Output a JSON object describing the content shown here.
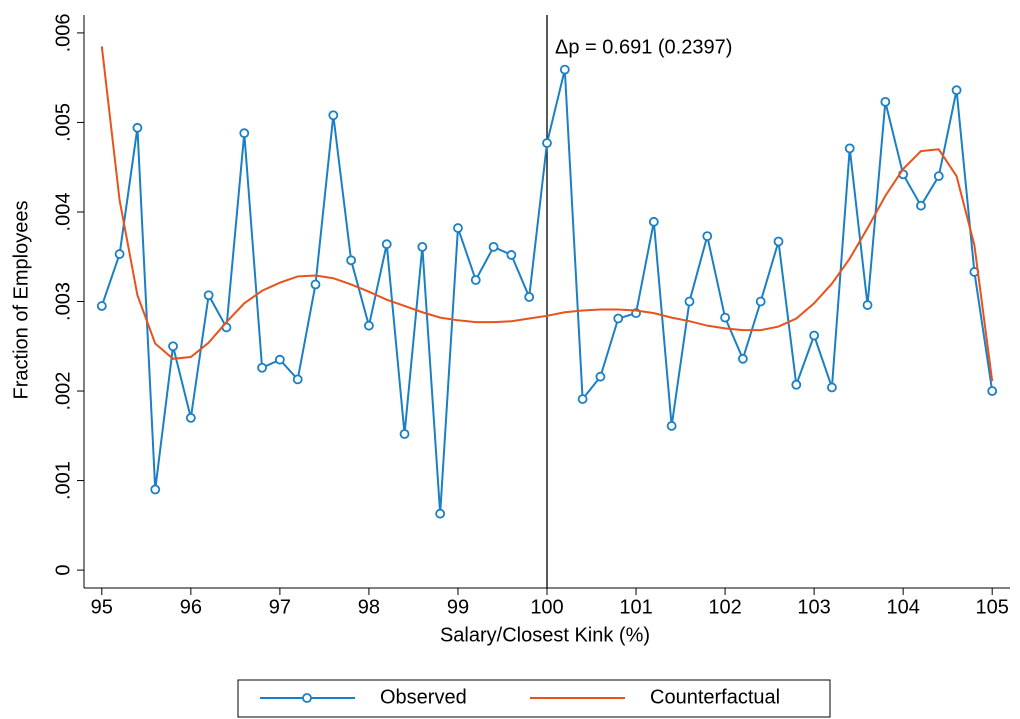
{
  "chart_data": {
    "type": "line",
    "x_label": "Salary/Closest Kink (%)",
    "y_label": "Fraction of Employees",
    "annotation": "Δp = 0.691 (0.2397)",
    "vline": 100,
    "x": [
      95,
      95.2,
      95.4,
      95.6,
      95.8,
      96,
      96.2,
      96.4,
      96.6,
      96.8,
      97,
      97.2,
      97.4,
      97.6,
      97.8,
      98,
      98.2,
      98.4,
      98.6,
      98.8,
      99,
      99.2,
      99.4,
      99.6,
      99.8,
      100,
      100.2,
      100.4,
      100.6,
      100.8,
      101,
      101.2,
      101.4,
      101.6,
      101.8,
      102,
      102.2,
      102.4,
      102.6,
      102.8,
      103,
      103.2,
      103.4,
      103.6,
      103.8,
      104,
      104.2,
      104.4,
      104.6,
      104.8,
      105
    ],
    "series": [
      {
        "name": "Observed",
        "color": "#1a7fc4",
        "markers": true,
        "values": [
          0.00295,
          0.00353,
          0.00494,
          0.0009,
          0.0025,
          0.0017,
          0.00307,
          0.00271,
          0.00488,
          0.00226,
          0.00235,
          0.00213,
          0.00319,
          0.00508,
          0.00346,
          0.00273,
          0.00364,
          0.00152,
          0.00361,
          0.00063,
          0.00382,
          0.00324,
          0.00361,
          0.00352,
          0.00305,
          0.00477,
          0.00559,
          0.00191,
          0.00216,
          0.00281,
          0.00287,
          0.00389,
          0.00161,
          0.003,
          0.00373,
          0.00282,
          0.00236,
          0.003,
          0.00367,
          0.00207,
          0.00262,
          0.00204,
          0.00471,
          0.00296,
          0.00523,
          0.00442,
          0.00407,
          0.0044,
          0.00536,
          0.00333,
          0.002
        ]
      },
      {
        "name": "Counterfactual",
        "color": "#e8521c",
        "markers": false,
        "values": [
          0.00585,
          0.00413,
          0.00307,
          0.00253,
          0.00236,
          0.00238,
          0.00254,
          0.00277,
          0.00298,
          0.00312,
          0.00321,
          0.00328,
          0.00329,
          0.00326,
          0.00319,
          0.00311,
          0.00302,
          0.00295,
          0.00288,
          0.00282,
          0.00279,
          0.00277,
          0.00277,
          0.00278,
          0.00281,
          0.00284,
          0.00288,
          0.0029,
          0.00291,
          0.00291,
          0.0029,
          0.00287,
          0.00282,
          0.00278,
          0.00273,
          0.0027,
          0.00268,
          0.00268,
          0.00272,
          0.00281,
          0.00298,
          0.0032,
          0.00348,
          0.00382,
          0.00418,
          0.00448,
          0.00468,
          0.0047,
          0.0044,
          0.00363,
          0.00211
        ]
      }
    ],
    "xlim": [
      94.8,
      105.2
    ],
    "ylim": [
      -0.0002,
      0.0062
    ],
    "xticks": [
      95,
      96,
      97,
      98,
      99,
      100,
      101,
      102,
      103,
      104,
      105
    ],
    "yticks": [
      0,
      {
        "value": 0.001,
        "label": ".001"
      },
      {
        "value": 0.002,
        "label": ".002"
      },
      {
        "value": 0.003,
        "label": ".003"
      },
      {
        "value": 0.004,
        "label": ".004"
      },
      {
        "value": 0.005,
        "label": ".005"
      },
      {
        "value": 0.006,
        "label": ".006"
      }
    ],
    "legend": "bottom"
  }
}
